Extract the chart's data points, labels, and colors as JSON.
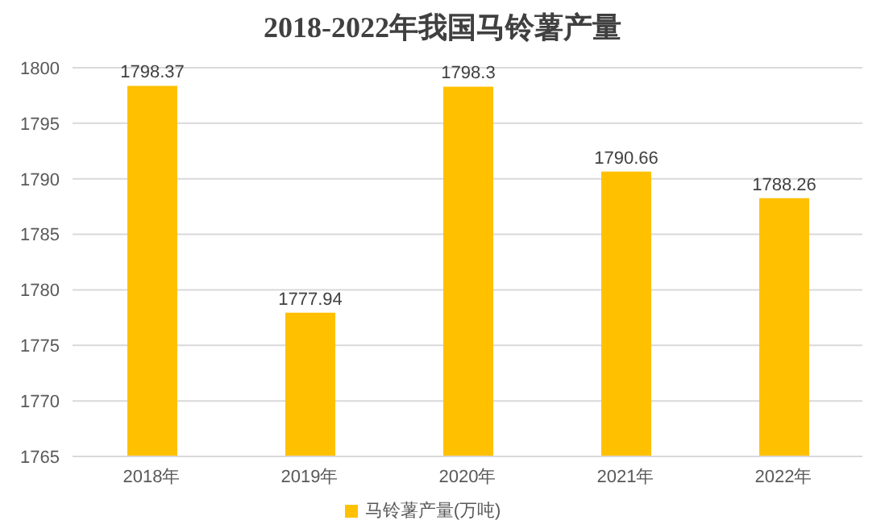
{
  "chart_data": {
    "type": "bar",
    "title": "2018-2022年我国马铃薯产量",
    "categories": [
      "2018年",
      "2019年",
      "2020年",
      "2021年",
      "2022年"
    ],
    "series": [
      {
        "name": "马铃薯产量(万吨)",
        "color": "#ffc000",
        "values": [
          1798.37,
          1777.94,
          1798.3,
          1790.66,
          1788.26
        ]
      }
    ],
    "ylim": [
      1765,
      1800
    ],
    "yticks": [
      1765,
      1770,
      1775,
      1780,
      1785,
      1790,
      1795,
      1800
    ],
    "grid": "y",
    "legend": "bottom",
    "data_labels": true
  }
}
